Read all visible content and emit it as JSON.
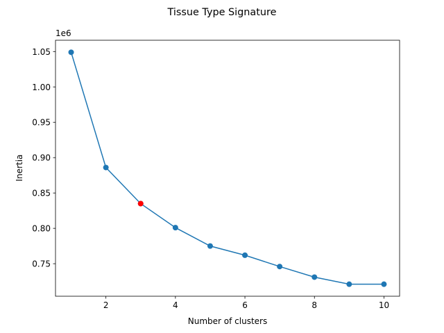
{
  "chart_data": {
    "type": "line",
    "title": "Tissue Type Signature",
    "xlabel": "Number of clusters",
    "ylabel": "Inertia",
    "y_offset_label": "1e6",
    "x": [
      1,
      2,
      3,
      4,
      5,
      6,
      7,
      8,
      9,
      10
    ],
    "series": [
      {
        "values": [
          1.049,
          0.886,
          0.835,
          0.801,
          0.775,
          0.762,
          0.746,
          0.731,
          0.721,
          0.721
        ],
        "color": "#1f77b4"
      }
    ],
    "highlight": {
      "x": 3,
      "y": 0.835,
      "color": "#ff0000"
    },
    "xlim": [
      0.55,
      10.45
    ],
    "ylim": [
      0.704,
      1.066
    ],
    "xticks": [
      2,
      4,
      6,
      8,
      10
    ],
    "yticks": [
      0.75,
      0.8,
      0.85,
      0.9,
      0.95,
      1.0,
      1.05
    ],
    "ytick_labels": [
      "0.75",
      "0.80",
      "0.85",
      "0.90",
      "0.95",
      "1.00",
      "1.05"
    ],
    "grid": false,
    "legend": "none"
  }
}
